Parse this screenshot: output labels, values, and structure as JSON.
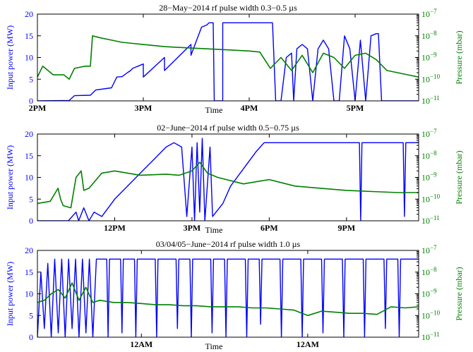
{
  "colors": {
    "power": "#0000ff",
    "pressure": "#008000",
    "axis": "#000000"
  },
  "chart_data": [
    {
      "type": "line",
      "title": "28−May−2014 rf pulse width 0.3−0.5  µs",
      "xlabel": "Time",
      "ylabel_left": "Input power (MW)",
      "ylabel_right": "Pressure (mbar)",
      "ylim_left": [
        0,
        20
      ],
      "yticks_left": [
        "0",
        "5",
        "10",
        "15",
        "20"
      ],
      "yscale_right": "log",
      "ylim_right_exponents": [
        -11,
        -7
      ],
      "yticks_right": [
        "10−11",
        "10−10",
        "10−9",
        "10−8",
        "10−7"
      ],
      "xlim": [
        14.0,
        17.6
      ],
      "xticks": [
        {
          "v": 14,
          "label": "2PM"
        },
        {
          "v": 15,
          "label": "3PM"
        },
        {
          "v": 16,
          "label": "4PM"
        },
        {
          "v": 17,
          "label": "5PM"
        }
      ],
      "series": [
        {
          "axis": "left",
          "x": [
            14.0,
            14.3,
            14.35,
            14.5,
            14.55,
            14.7,
            14.75,
            14.8,
            14.85,
            14.88,
            14.9,
            14.93,
            14.95,
            15.0,
            15.0,
            15.2,
            15.2,
            15.45,
            15.45,
            15.55,
            15.6,
            15.62,
            15.66,
            15.67,
            15.75,
            15.75,
            15.9,
            15.95,
            15.96,
            16.2,
            16.22,
            16.25,
            16.3,
            16.35,
            16.4,
            16.42,
            16.45,
            16.5,
            16.55,
            16.6,
            16.65,
            16.7,
            16.75,
            16.8,
            16.85,
            16.9,
            16.95,
            17.0,
            17.05,
            17.1,
            17.15,
            17.2,
            17.22,
            17.25,
            17.3,
            17.35,
            17.6
          ],
          "y": [
            0,
            0.1,
            1.2,
            1.3,
            2.5,
            3,
            5.5,
            5.6,
            6.5,
            7,
            7.5,
            7.8,
            8,
            8.5,
            5.5,
            10,
            7,
            13,
            10.5,
            17,
            17.5,
            18,
            18,
            0,
            0,
            18,
            18,
            18,
            18,
            18,
            18,
            0,
            0,
            10,
            11,
            0,
            12,
            13,
            12,
            0,
            12,
            14,
            12,
            0,
            0,
            15,
            12,
            0,
            14,
            0,
            15,
            15.5,
            15.5,
            0,
            0,
            0,
            0
          ]
        },
        {
          "axis": "right",
          "x": [
            14.0,
            14.05,
            14.15,
            14.25,
            14.3,
            14.35,
            14.45,
            14.5,
            14.52,
            14.6,
            14.7,
            14.8,
            14.9,
            15.0,
            15.2,
            15.4,
            15.6,
            15.8,
            16.0,
            16.1,
            16.2,
            16.3,
            16.4,
            16.5,
            16.6,
            16.7,
            16.8,
            16.9,
            17.0,
            17.1,
            17.2,
            17.3,
            17.4,
            17.5,
            17.6
          ],
          "y": [
            -9.9,
            -9.4,
            -9.8,
            -9.8,
            -10.0,
            -9.5,
            -9.4,
            -9.4,
            -8.0,
            -8.1,
            -8.2,
            -8.3,
            -8.35,
            -8.4,
            -8.5,
            -8.55,
            -8.6,
            -8.65,
            -8.7,
            -8.75,
            -9.5,
            -9.0,
            -9.6,
            -8.9,
            -9.7,
            -8.8,
            -9.0,
            -9.5,
            -8.9,
            -8.8,
            -9.1,
            -9.6,
            -9.7,
            -9.8,
            -9.9
          ]
        }
      ]
    },
    {
      "type": "line",
      "title": "02−June−2014 rf pulse width 0.5−0.75  µs",
      "xlabel": "Time",
      "ylabel_left": "Input power (MW)",
      "ylabel_right": "Pressure (mbar)",
      "ylim_left": [
        0,
        20
      ],
      "yticks_left": [
        "0",
        "5",
        "10",
        "15",
        "20"
      ],
      "yscale_right": "log",
      "ylim_right_exponents": [
        -11,
        -7
      ],
      "yticks_right": [
        "10−11",
        "10−10",
        "10−9",
        "10−8",
        "10−7"
      ],
      "xlim": [
        9.0,
        23.8
      ],
      "xticks": [
        {
          "v": 12,
          "label": "12PM"
        },
        {
          "v": 15,
          "label": "3PM"
        },
        {
          "v": 18,
          "label": "6PM"
        },
        {
          "v": 21,
          "label": "9PM"
        }
      ],
      "series": [
        {
          "axis": "left",
          "x": [
            9.0,
            10.2,
            10.5,
            10.6,
            10.8,
            11.0,
            11.2,
            11.5,
            12.0,
            12.5,
            13.0,
            13.5,
            14.0,
            14.3,
            14.6,
            14.8,
            15.0,
            15.1,
            15.2,
            15.3,
            15.4,
            15.5,
            15.7,
            15.8,
            16.2,
            16.5,
            17.0,
            17.5,
            17.8,
            18.0,
            18.5,
            19.0,
            20.0,
            21.0,
            21.5,
            21.55,
            21.6,
            22.0,
            23.0,
            23.2,
            23.25,
            23.3,
            23.8
          ],
          "y": [
            0,
            0,
            2,
            0,
            3,
            0,
            2,
            1,
            5,
            8,
            11,
            14,
            17,
            18,
            17,
            1,
            17,
            0,
            18,
            2,
            19,
            0,
            17,
            1,
            4,
            8,
            12,
            16,
            18,
            18,
            18,
            18,
            18,
            18,
            18,
            0,
            18,
            18,
            18,
            18,
            1,
            18,
            18
          ]
        },
        {
          "axis": "right",
          "x": [
            9.0,
            9.5,
            9.8,
            9.9,
            10.0,
            10.3,
            10.5,
            10.7,
            10.8,
            11.0,
            11.5,
            12.0,
            12.5,
            13.0,
            14.0,
            14.5,
            15.0,
            15.3,
            15.6,
            16.0,
            17.0,
            17.5,
            18.0,
            18.5,
            19.0,
            20.0,
            21.0,
            22.0,
            23.0,
            23.8
          ],
          "y": [
            -10.2,
            -10.1,
            -9.5,
            -10.0,
            -10.3,
            -10.4,
            -9.0,
            -8.7,
            -9.6,
            -9.5,
            -8.8,
            -8.7,
            -8.8,
            -8.9,
            -8.85,
            -8.9,
            -8.7,
            -8.3,
            -8.8,
            -9.0,
            -9.3,
            -9.2,
            -9.1,
            -9.25,
            -9.4,
            -9.5,
            -9.6,
            -9.65,
            -9.7,
            -9.7
          ]
        }
      ]
    },
    {
      "type": "line",
      "title": "03/04/05−June−2014 rf pulse width 1.0  µs",
      "xlabel": "Time",
      "ylabel_left": "Input power (MW)",
      "ylabel_right": "Pressure (mbar)",
      "ylim_left": [
        0,
        20
      ],
      "yticks_left": [
        "0",
        "5",
        "10",
        "15",
        "20"
      ],
      "yscale_right": "log",
      "ylim_right_exponents": [
        -11,
        -7
      ],
      "yticks_right": [
        "10−11",
        "10−10",
        "10−9",
        "10−8",
        "10−7"
      ],
      "xlim": [
        9.0,
        64.0
      ],
      "xticks": [
        {
          "v": 24,
          "label": "12AM"
        },
        {
          "v": 48,
          "label": "12AM"
        }
      ],
      "series": [
        {
          "axis": "left",
          "x": [
            9.0,
            9.5,
            10.0,
            10.5,
            11.0,
            11.5,
            12.0,
            12.5,
            13.0,
            13.5,
            14.0,
            14.5,
            15.0,
            15.5,
            16.0,
            16.5,
            17.0,
            17.5,
            18.0,
            19.0,
            19.2,
            19.4,
            21.0,
            21.2,
            21.4,
            23.0,
            23.2,
            23.4,
            26.0,
            26.2,
            26.4,
            29.0,
            29.2,
            29.4,
            31.0,
            31.2,
            31.4,
            34.0,
            34.2,
            34.4,
            36.0,
            36.2,
            36.4,
            39.0,
            39.2,
            39.4,
            41.0,
            41.2,
            41.4,
            44.0,
            44.2,
            44.4,
            47.0,
            47.2,
            47.4,
            50.0,
            50.2,
            50.4,
            53.0,
            53.2,
            53.4,
            56.0,
            56.2,
            56.4,
            59.0,
            59.2,
            59.4,
            61.0,
            61.2,
            61.4,
            64.0
          ],
          "y": [
            0,
            15,
            2,
            17,
            0,
            18,
            1,
            18,
            0,
            18,
            2,
            18,
            0,
            18,
            1,
            18,
            0,
            18,
            18,
            18,
            0,
            18,
            18,
            1,
            18,
            18,
            0,
            18,
            18,
            0,
            18,
            18,
            2,
            18,
            18,
            0,
            18,
            18,
            1,
            18,
            18,
            0,
            18,
            18,
            0,
            18,
            18,
            3,
            18,
            18,
            0,
            18,
            18,
            0,
            18,
            18,
            1,
            18,
            18,
            0,
            18,
            18,
            0,
            18,
            18,
            2,
            18,
            18,
            0,
            18,
            18
          ]
        },
        {
          "axis": "right",
          "x": [
            9.0,
            10.0,
            11.0,
            12.0,
            13.0,
            14.0,
            15.0,
            16.0,
            17.0,
            18.0,
            20.0,
            22.0,
            24.0,
            26.0,
            28.0,
            30.0,
            32.0,
            34.0,
            36.0,
            38.0,
            40.0,
            42.0,
            44.0,
            46.0,
            48.0,
            50.0,
            52.0,
            54.0,
            56.0,
            58.0,
            60.0,
            62.0,
            64.0
          ],
          "y": [
            -9.4,
            -9.3,
            -9.0,
            -8.8,
            -9.2,
            -8.5,
            -9.3,
            -8.7,
            -9.4,
            -9.3,
            -9.4,
            -9.4,
            -9.45,
            -9.5,
            -9.5,
            -9.55,
            -9.55,
            -9.6,
            -9.6,
            -9.6,
            -9.65,
            -9.65,
            -9.7,
            -9.75,
            -10.0,
            -9.8,
            -9.85,
            -9.9,
            -9.9,
            -9.95,
            -9.6,
            -9.65,
            -9.6
          ]
        }
      ]
    }
  ]
}
